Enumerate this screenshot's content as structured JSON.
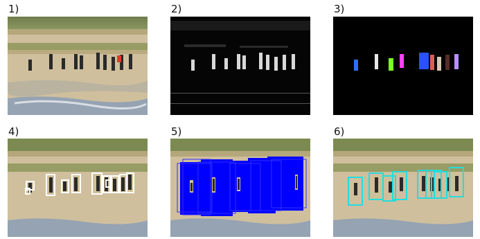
{
  "panels": [
    {
      "label": "1)"
    },
    {
      "label": "2)"
    },
    {
      "label": "3)"
    },
    {
      "label": "4)"
    },
    {
      "label": "5)"
    },
    {
      "label": "6)"
    }
  ],
  "colors": {
    "sand": "#cdbd9a",
    "grass": "#7c8a52",
    "water": "#8fa2b8",
    "box4": "#ffffff",
    "box5": "#0000ff",
    "box6": "#22dddd"
  }
}
